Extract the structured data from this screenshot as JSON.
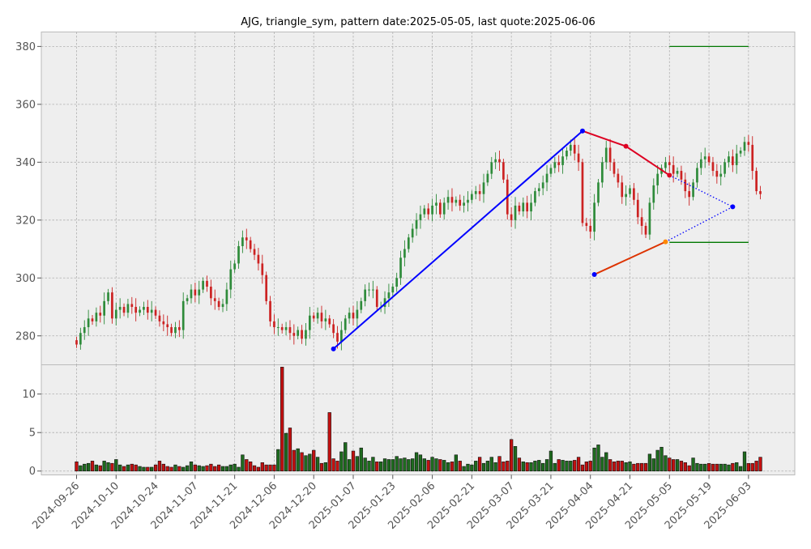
{
  "chart_data": {
    "type": "candlestick",
    "title": "AJG, triangle_sym, pattern date:2025-05-05, last quote:2025-06-06",
    "ticker": "AJG",
    "pattern": "triangle_sym",
    "pattern_date": "2025-05-05",
    "last_quote": "2025-06-06",
    "grid": true,
    "colors": {
      "up": "#2e8b3a",
      "down": "#cc2222",
      "vol_up": "#1e6b1e",
      "vol_down": "#c41010",
      "background": "#eeeeee",
      "main_line": "#0000ff",
      "upper_line": "#dd0022",
      "lower_line": "#dd3300",
      "target_lines": "#007700"
    },
    "price_axis": {
      "range": [
        270,
        385
      ],
      "ticks": [
        280,
        300,
        320,
        340,
        360,
        380
      ]
    },
    "volume_axis": {
      "range": [
        -0.5,
        13.8
      ],
      "ticks": [
        0,
        5,
        10
      ]
    },
    "x_ticks": [
      "2024-09-26",
      "2024-10-10",
      "2024-10-24",
      "2024-11-07",
      "2024-11-21",
      "2024-12-06",
      "2024-12-20",
      "2025-01-07",
      "2025-01-23",
      "2025-02-06",
      "2025-02-21",
      "2025-03-07",
      "2025-03-21",
      "2025-04-04",
      "2025-04-21",
      "2025-05-05",
      "2025-05-19",
      "2025-06-03"
    ],
    "closes": [
      277,
      281,
      283,
      286,
      285,
      288,
      287,
      292,
      295,
      286,
      289,
      290,
      288,
      291,
      290,
      288,
      289,
      290,
      288,
      289,
      287,
      285,
      284,
      283,
      281,
      283,
      282,
      292,
      293,
      296,
      294,
      296,
      299,
      297,
      293,
      292,
      290,
      291,
      296,
      303,
      305,
      311,
      314,
      313,
      310,
      308,
      305,
      301,
      292,
      285,
      283,
      283,
      282,
      283,
      281,
      280,
      282,
      279,
      282,
      287,
      286,
      288,
      285,
      286,
      284,
      281,
      278,
      282,
      286,
      288,
      286,
      289,
      292,
      296,
      296,
      296,
      290,
      290,
      293,
      295,
      297,
      300,
      307,
      310,
      314,
      317,
      320,
      322,
      324,
      322,
      325,
      326,
      322,
      326,
      328,
      326,
      327,
      325,
      326,
      327,
      329,
      330,
      329,
      333,
      336,
      340,
      341,
      340,
      334,
      322,
      320,
      325,
      323,
      326,
      323,
      326,
      330,
      331,
      333,
      336,
      338,
      340,
      339,
      342,
      344,
      346,
      343,
      340,
      319,
      318,
      316,
      326,
      333,
      340,
      345,
      340,
      336,
      333,
      328,
      329,
      331,
      327,
      321,
      318,
      315,
      326,
      332,
      336,
      338,
      340,
      339,
      336,
      337,
      334,
      330,
      328,
      333,
      338,
      341,
      342,
      340,
      337,
      335,
      336,
      340,
      342,
      339,
      343,
      344,
      347,
      346,
      337,
      330,
      329
    ],
    "volumes": [
      1.2,
      0.7,
      0.9,
      1.0,
      1.3,
      0.8,
      0.7,
      1.3,
      1.1,
      1.0,
      1.5,
      0.8,
      0.6,
      0.8,
      0.9,
      0.8,
      0.6,
      0.5,
      0.5,
      0.5,
      0.8,
      1.3,
      0.9,
      0.6,
      0.5,
      0.8,
      0.6,
      0.5,
      0.7,
      1.2,
      0.8,
      0.7,
      0.6,
      0.7,
      0.9,
      0.6,
      0.8,
      0.6,
      0.6,
      0.8,
      0.9,
      0.5,
      2.1,
      1.5,
      1.2,
      0.7,
      0.5,
      1.1,
      0.8,
      0.8,
      0.8,
      2.8,
      13.5,
      4.9,
      5.6,
      2.7,
      2.9,
      2.4,
      2.0,
      2.2,
      2.7,
      1.8,
      1.0,
      1.1,
      7.6,
      1.6,
      1.3,
      2.5,
      3.7,
      1.5,
      2.6,
      1.9,
      3.0,
      1.7,
      1.3,
      1.8,
      1.2,
      1.2,
      1.6,
      1.5,
      1.5,
      1.9,
      1.6,
      1.7,
      1.5,
      1.6,
      2.4,
      2.1,
      1.6,
      1.4,
      1.8,
      1.6,
      1.5,
      1.4,
      1.1,
      1.2,
      2.1,
      1.3,
      0.6,
      0.9,
      0.8,
      1.3,
      1.8,
      1.0,
      1.3,
      1.8,
      1.1,
      1.9,
      1.2,
      1.3,
      4.1,
      3.2,
      1.7,
      1.2,
      1.1,
      1.1,
      1.3,
      1.4,
      1.0,
      1.5,
      2.6,
      1.0,
      1.5,
      1.4,
      1.3,
      1.3,
      1.4,
      1.8,
      0.8,
      1.2,
      1.3,
      3.0,
      3.4,
      1.8,
      2.4,
      1.5,
      1.2,
      1.3,
      1.3,
      1.1,
      1.2,
      0.9,
      1.0,
      1.0,
      1.0,
      2.2,
      1.6,
      2.7,
      3.1,
      2.0,
      1.7,
      1.5,
      1.5,
      1.3,
      1.1,
      0.7,
      1.7,
      1.0,
      0.9,
      0.9,
      1.0,
      0.9,
      0.9,
      0.9,
      0.9,
      0.8,
      1.0,
      1.1,
      0.6,
      2.5,
      1.0,
      1.0,
      1.3,
      1.8,
      0.1
    ],
    "pattern_lines": [
      {
        "name": "swing-line",
        "style": "solid",
        "color": "#0000ff",
        "points": [
          [
            "2024-12-30",
            275.5
          ],
          [
            "2025-04-02",
            350.8
          ]
        ]
      },
      {
        "name": "upper-trend-line",
        "style": "solid",
        "color": "#dd0022",
        "points": [
          [
            "2025-04-02",
            350.8
          ],
          [
            "2025-04-17",
            345.5
          ],
          [
            "2025-05-05",
            335.5
          ]
        ]
      },
      {
        "name": "lower-trend-line",
        "style": "solid",
        "color": "#dd3300",
        "points": [
          [
            "2025-04-07",
            301.2
          ],
          [
            "2025-05-02",
            312.5
          ]
        ]
      },
      {
        "name": "upper-projection",
        "style": "dotted",
        "color": "#0000ff",
        "points": [
          [
            "2025-05-05",
            335.5
          ],
          [
            "2025-05-28",
            324.6
          ]
        ]
      },
      {
        "name": "lower-projection",
        "style": "dotted",
        "color": "#0000ff",
        "points": [
          [
            "2025-05-02",
            312.5
          ],
          [
            "2025-05-28",
            324.6
          ]
        ]
      },
      {
        "name": "target-high-line",
        "style": "solid",
        "color": "#007700",
        "points": [
          [
            "2025-05-05",
            380.0
          ],
          [
            "2025-06-03",
            380.0
          ]
        ]
      },
      {
        "name": "target-low-line",
        "style": "solid",
        "color": "#007700",
        "points": [
          [
            "2025-05-05",
            312.3
          ],
          [
            "2025-06-03",
            312.3
          ]
        ]
      }
    ],
    "pattern_points": [
      {
        "name": "swing-low-point",
        "x": "2024-12-30",
        "y": 275.5,
        "color": "#0000ff"
      },
      {
        "name": "swing-high-point",
        "x": "2025-04-02",
        "y": 350.8,
        "color": "#0000ff"
      },
      {
        "name": "upper-mid-point",
        "x": "2025-04-17",
        "y": 345.5,
        "color": "#dd0022"
      },
      {
        "name": "upper-end-point",
        "x": "2025-05-05",
        "y": 335.5,
        "color": "#dd0022"
      },
      {
        "name": "lower-start-point",
        "x": "2025-04-07",
        "y": 301.2,
        "color": "#0000ff"
      },
      {
        "name": "lower-end-point",
        "x": "2025-05-02",
        "y": 312.5,
        "color": "#ff8800"
      },
      {
        "name": "apex-point",
        "x": "2025-05-28",
        "y": 324.6,
        "color": "#0000ff"
      }
    ]
  }
}
